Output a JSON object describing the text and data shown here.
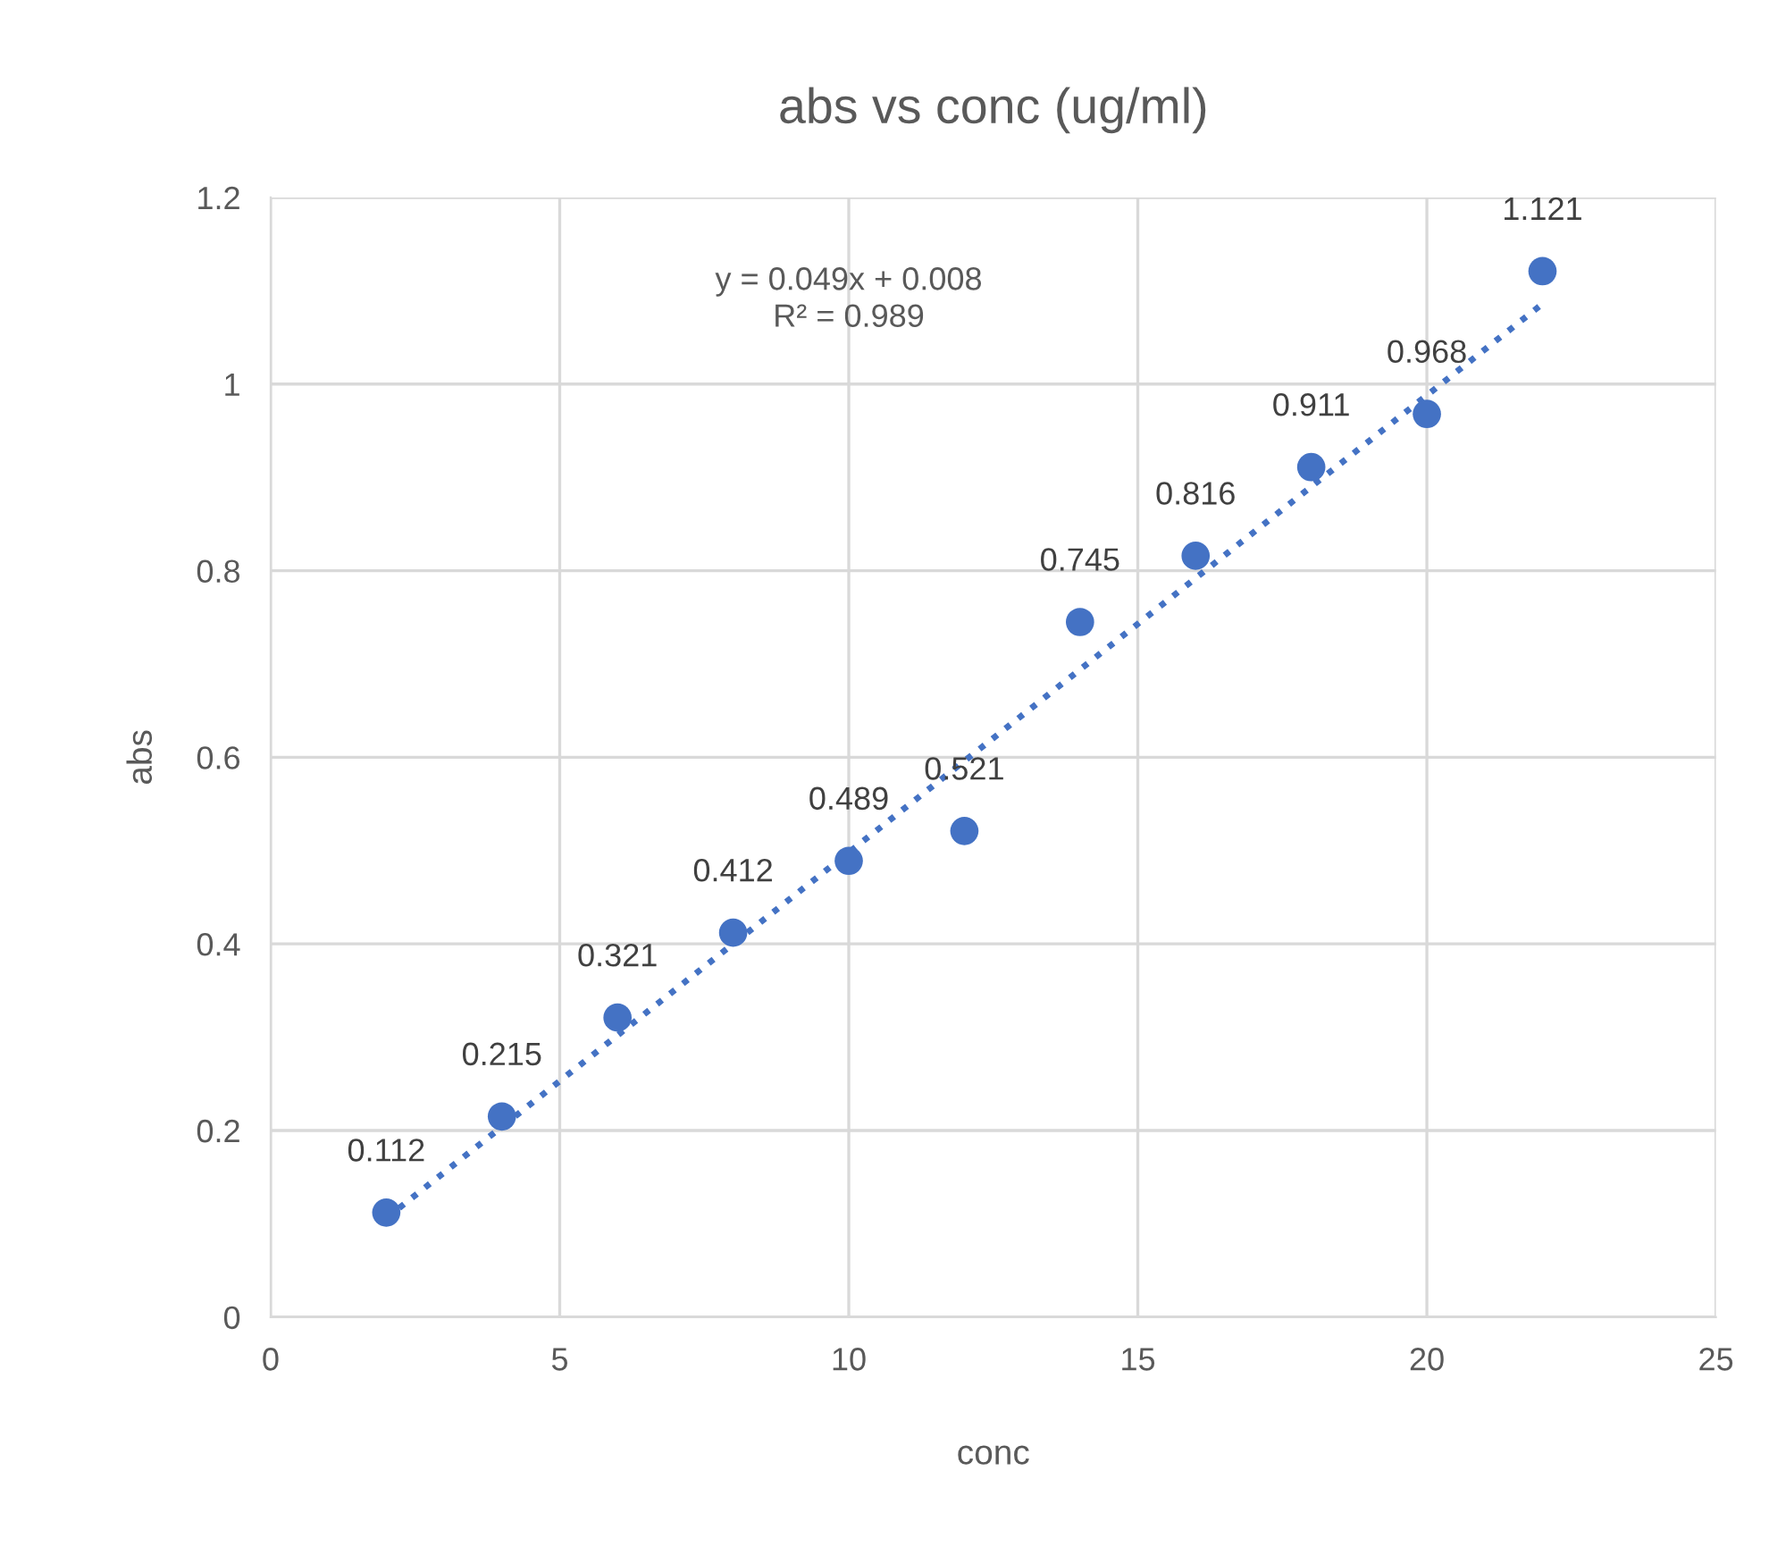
{
  "chart_data": {
    "type": "scatter",
    "title": "abs vs conc (ug/ml)",
    "xlabel": "conc",
    "ylabel": "abs",
    "xlim": [
      0,
      25
    ],
    "xticks": [
      0,
      5,
      10,
      15,
      20,
      25
    ],
    "ylim": [
      0,
      1.2
    ],
    "yticks": [
      0,
      0.2,
      0.4,
      0.6,
      0.8,
      1,
      1.2
    ],
    "grid": true,
    "legend": false,
    "series": [
      {
        "color": "#4472c4",
        "marker": "circle",
        "data_labels": true,
        "x": [
          2,
          4,
          6,
          8,
          10,
          12,
          14,
          16,
          18,
          20,
          22
        ],
        "values": [
          0.112,
          0.215,
          0.321,
          0.412,
          0.489,
          0.521,
          0.745,
          0.816,
          0.911,
          0.968,
          1.121
        ]
      },
      {
        "type": "line",
        "color": "#4472c4",
        "marker": "none",
        "line_style": "dotted",
        "x": [
          2,
          22
        ],
        "values": [
          0.106,
          1.086
        ]
      }
    ],
    "annotations": [
      "y = 0.049x + 0.008",
      "R² = 0.989"
    ]
  }
}
